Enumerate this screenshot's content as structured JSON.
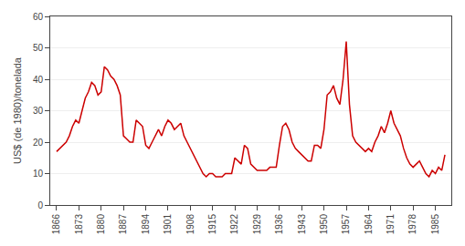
{
  "chart_data": {
    "type": "line",
    "x": [
      1866,
      1867,
      1868,
      1869,
      1870,
      1871,
      1872,
      1873,
      1874,
      1875,
      1876,
      1877,
      1878,
      1879,
      1880,
      1881,
      1882,
      1883,
      1884,
      1885,
      1886,
      1887,
      1888,
      1889,
      1890,
      1891,
      1892,
      1893,
      1894,
      1895,
      1896,
      1897,
      1898,
      1899,
      1900,
      1901,
      1902,
      1903,
      1904,
      1905,
      1906,
      1907,
      1908,
      1909,
      1910,
      1911,
      1912,
      1913,
      1914,
      1915,
      1916,
      1917,
      1918,
      1919,
      1920,
      1921,
      1922,
      1923,
      1924,
      1925,
      1926,
      1927,
      1928,
      1929,
      1930,
      1931,
      1932,
      1933,
      1934,
      1935,
      1936,
      1937,
      1938,
      1939,
      1940,
      1941,
      1942,
      1943,
      1944,
      1945,
      1946,
      1947,
      1948,
      1949,
      1950,
      1951,
      1952,
      1953,
      1954,
      1955,
      1956,
      1957,
      1958,
      1959,
      1960,
      1961,
      1962,
      1963,
      1964,
      1965,
      1966,
      1967,
      1968,
      1969,
      1970,
      1971,
      1972,
      1973,
      1974,
      1975,
      1976,
      1977,
      1978,
      1979,
      1980,
      1981,
      1982,
      1983,
      1984,
      1985,
      1986,
      1987,
      1988
    ],
    "values": [
      17,
      18,
      19,
      20,
      22,
      25,
      27,
      26,
      30,
      34,
      36,
      39,
      38,
      35,
      36,
      44,
      43,
      41,
      40,
      38,
      35,
      22,
      21,
      20,
      20,
      27,
      26,
      25,
      19,
      18,
      20,
      22,
      24,
      22,
      25,
      27,
      26,
      24,
      25,
      26,
      22,
      20,
      18,
      16,
      14,
      12,
      10,
      9,
      10,
      10,
      9,
      9,
      9,
      10,
      10,
      10,
      15,
      14,
      13,
      19,
      18,
      13,
      12,
      11,
      11,
      11,
      11,
      12,
      12,
      12,
      19,
      25,
      26,
      24,
      20,
      18,
      17,
      16,
      15,
      14,
      14,
      19,
      19,
      18,
      24,
      35,
      36,
      38,
      34,
      32,
      40,
      52,
      32,
      22,
      20,
      19,
      18,
      17,
      18,
      17,
      20,
      22,
      25,
      23,
      26,
      30,
      26,
      24,
      22,
      18,
      15,
      13,
      12,
      13,
      14,
      12,
      10,
      9,
      11,
      10,
      12,
      11,
      16
    ],
    "color": "#cc0000",
    "ylabel": "US$ (de 1980)/tonelada",
    "xlim": [
      1864,
      1990
    ],
    "ylim": [
      0,
      60
    ],
    "xticks": [
      1866,
      1873,
      1880,
      1887,
      1894,
      1901,
      1908,
      1915,
      1922,
      1929,
      1936,
      1943,
      1950,
      1957,
      1964,
      1971,
      1978,
      1985
    ],
    "yticks": [
      0,
      10,
      20,
      30,
      40,
      50,
      60
    ],
    "grid": true
  }
}
